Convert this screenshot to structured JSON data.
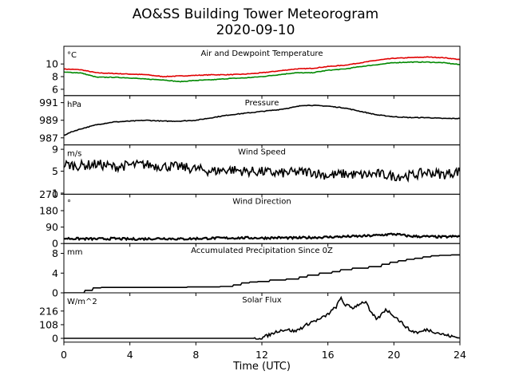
{
  "figure": {
    "title_line1": "AO&SS Building Tower Meteorogram",
    "title_line2": "2020-09-10",
    "xlabel": "Time (UTC)",
    "xticks": [
      0,
      4,
      8,
      12,
      16,
      20,
      24
    ],
    "xlim": [
      0,
      24
    ]
  },
  "chart_data": [
    {
      "type": "line",
      "title": "Air and Dewpoint Temperature",
      "unit": "°C",
      "ylim": [
        5.0,
        12.8
      ],
      "yticks": [
        6,
        8,
        10
      ],
      "series": [
        {
          "color": "#e00000",
          "x": [
            0,
            1,
            2,
            3,
            4,
            5,
            6,
            7,
            8,
            9,
            10,
            11,
            12,
            13,
            14,
            15,
            16,
            17,
            18,
            19,
            20,
            21,
            22,
            23,
            24
          ],
          "y": [
            9.2,
            9.1,
            8.6,
            8.5,
            8.4,
            8.3,
            8.0,
            8.1,
            8.2,
            8.3,
            8.3,
            8.4,
            8.6,
            8.9,
            9.2,
            9.3,
            9.6,
            9.8,
            10.2,
            10.6,
            10.9,
            11.0,
            11.1,
            11.0,
            10.7
          ]
        },
        {
          "color": "#008800",
          "x": [
            0,
            1,
            2,
            3,
            4,
            5,
            6,
            7,
            8,
            9,
            10,
            11,
            12,
            13,
            14,
            15,
            16,
            17,
            18,
            19,
            20,
            21,
            22,
            23,
            24
          ],
          "y": [
            8.7,
            8.6,
            7.9,
            7.9,
            7.8,
            7.6,
            7.5,
            7.2,
            7.4,
            7.5,
            7.7,
            7.8,
            8.0,
            8.3,
            8.6,
            8.6,
            9.0,
            9.2,
            9.6,
            9.9,
            10.2,
            10.3,
            10.3,
            10.2,
            9.9
          ]
        }
      ]
    },
    {
      "type": "line",
      "title": "Pressure",
      "unit": "hPa",
      "ylim": [
        986.2,
        991.8
      ],
      "yticks": [
        987,
        989,
        991
      ],
      "series": [
        {
          "color": "#000000",
          "x": [
            0,
            0.5,
            1,
            2,
            3,
            4,
            5,
            6,
            7,
            8,
            9,
            10,
            11,
            12,
            13,
            14,
            14.5,
            15,
            16,
            17,
            18,
            19,
            20,
            21,
            22,
            23,
            24
          ],
          "y": [
            987.3,
            987.7,
            988.0,
            988.5,
            988.8,
            988.9,
            989.0,
            988.9,
            988.9,
            989.0,
            989.3,
            989.6,
            989.8,
            990.0,
            990.2,
            990.5,
            990.7,
            990.7,
            990.6,
            990.4,
            990.0,
            989.6,
            989.4,
            989.3,
            989.3,
            989.2,
            989.2
          ]
        }
      ]
    },
    {
      "type": "line",
      "title": "Wind Speed",
      "unit": "m/s",
      "ylim": [
        0.8,
        9.8
      ],
      "yticks": [
        1,
        5,
        9
      ],
      "series": [
        {
          "color": "#000000",
          "x": [
            0,
            1,
            2,
            3,
            4,
            5,
            6,
            7,
            8,
            9,
            10,
            11,
            12,
            13,
            14,
            15,
            16,
            17,
            18,
            19,
            20,
            21,
            22,
            23,
            24
          ],
          "y": [
            6.2,
            6.0,
            6.3,
            5.8,
            6.1,
            6.2,
            5.9,
            5.8,
            5.4,
            5.0,
            5.3,
            5.0,
            4.9,
            4.6,
            4.8,
            4.9,
            4.2,
            4.5,
            4.3,
            4.5,
            4.1,
            4.2,
            4.8,
            4.4,
            5.0
          ]
        }
      ]
    },
    {
      "type": "line",
      "title": "Wind Direction",
      "unit": "°",
      "ylim": [
        0,
        270
      ],
      "yticks": [
        0,
        90,
        180,
        270
      ],
      "series": [
        {
          "color": "#000000",
          "x": [
            0,
            1,
            2,
            3,
            4,
            5,
            6,
            7,
            8,
            9,
            10,
            11,
            12,
            13,
            14,
            15,
            16,
            17,
            18,
            19,
            20,
            21,
            22,
            23,
            24
          ],
          "y": [
            28,
            26,
            25,
            27,
            24,
            26,
            28,
            25,
            27,
            29,
            30,
            31,
            30,
            32,
            30,
            33,
            35,
            38,
            40,
            45,
            52,
            40,
            38,
            36,
            40
          ]
        }
      ]
    },
    {
      "type": "line",
      "title": "Accumulated Precipitation Since 0Z",
      "unit": "mm",
      "ylim": [
        0,
        10
      ],
      "yticks": [
        0,
        4,
        8
      ],
      "series": [
        {
          "color": "#000000",
          "x": [
            0,
            1,
            1.5,
            2,
            2.5,
            3,
            4,
            5,
            6,
            7,
            8,
            9,
            10,
            10.5,
            11,
            11.5,
            12,
            13,
            14,
            14.5,
            15,
            16,
            16.5,
            17,
            18,
            19,
            19.5,
            20,
            20.5,
            21,
            21.5,
            22,
            22.5,
            23,
            24
          ],
          "y": [
            0,
            0,
            0.5,
            1.0,
            1.1,
            1.1,
            1.1,
            1.1,
            1.1,
            1.1,
            1.2,
            1.2,
            1.3,
            1.6,
            2.0,
            2.2,
            2.3,
            2.6,
            2.8,
            3.2,
            3.6,
            4.0,
            4.3,
            4.7,
            5.0,
            5.3,
            5.8,
            6.2,
            6.5,
            6.8,
            7.0,
            7.3,
            7.5,
            7.6,
            7.7
          ]
        }
      ]
    },
    {
      "type": "line",
      "title": "Solar Flux",
      "unit": "W/m^2",
      "ylim": [
        -30,
        360
      ],
      "yticks": [
        0,
        108,
        216
      ],
      "series": [
        {
          "color": "#000000",
          "x": [
            0,
            2,
            4,
            6,
            8,
            10,
            11,
            11.5,
            12,
            12.5,
            13,
            13.5,
            14,
            14.5,
            15,
            15.5,
            16,
            16.5,
            16.8,
            17,
            17.5,
            18,
            18.3,
            18.6,
            19,
            19.5,
            20,
            20.5,
            21,
            21.5,
            22,
            22.5,
            23,
            23.5,
            24
          ],
          "y": [
            0,
            0,
            0,
            0,
            0,
            0,
            0,
            0,
            5,
            30,
            60,
            70,
            55,
            90,
            130,
            150,
            190,
            250,
            320,
            270,
            240,
            280,
            290,
            200,
            150,
            230,
            180,
            120,
            60,
            45,
            70,
            50,
            30,
            15,
            2
          ]
        }
      ]
    }
  ]
}
